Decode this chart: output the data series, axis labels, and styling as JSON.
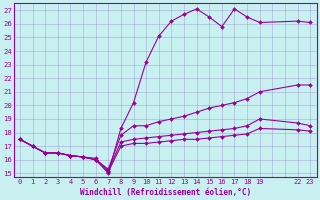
{
  "xlabel": "Windchill (Refroidissement éolien,°C)",
  "bg_color": "#c8f0f0",
  "line_color": "#990099",
  "grid_color": "#9999cc",
  "yticks": [
    15,
    16,
    17,
    18,
    19,
    20,
    21,
    22,
    23,
    24,
    25,
    26,
    27
  ],
  "xtick_labels": [
    "0",
    "1",
    "2",
    "3",
    "4",
    "5",
    "6",
    "7",
    "8",
    "9",
    "10",
    "11",
    "12",
    "13",
    "14",
    "15",
    "16",
    "17",
    "18",
    "19",
    "",
    "",
    "22",
    "23"
  ],
  "xtick_positions": [
    0,
    1,
    2,
    3,
    4,
    5,
    6,
    7,
    8,
    9,
    10,
    11,
    12,
    13,
    14,
    15,
    16,
    17,
    18,
    19,
    20,
    21,
    22,
    23
  ],
  "lines": [
    {
      "x": [
        0,
        1,
        2,
        3,
        4,
        5,
        6,
        7,
        8,
        9,
        10,
        11,
        12,
        13,
        14,
        15,
        16,
        17,
        18,
        19,
        22,
        23
      ],
      "y": [
        17.5,
        17.0,
        16.5,
        16.5,
        16.3,
        16.2,
        16.0,
        15.0,
        18.3,
        20.2,
        23.2,
        25.1,
        26.2,
        26.7,
        27.1,
        26.5,
        25.8,
        27.1,
        26.5,
        26.1,
        26.2,
        26.1
      ]
    },
    {
      "x": [
        0,
        1,
        2,
        3,
        4,
        5,
        6,
        7,
        8,
        9,
        10,
        11,
        12,
        13,
        14,
        15,
        16,
        17,
        18,
        19,
        22,
        23
      ],
      "y": [
        17.5,
        17.0,
        16.5,
        16.5,
        16.3,
        16.2,
        16.0,
        15.3,
        17.8,
        18.5,
        18.5,
        18.8,
        19.0,
        19.2,
        19.5,
        19.8,
        20.0,
        20.2,
        20.5,
        21.0,
        21.5,
        21.5
      ]
    },
    {
      "x": [
        0,
        1,
        2,
        3,
        4,
        5,
        6,
        7,
        8,
        9,
        10,
        11,
        12,
        13,
        14,
        15,
        16,
        17,
        18,
        19,
        22,
        23
      ],
      "y": [
        17.5,
        17.0,
        16.5,
        16.5,
        16.3,
        16.2,
        16.0,
        15.2,
        17.3,
        17.5,
        17.6,
        17.7,
        17.8,
        17.9,
        18.0,
        18.1,
        18.2,
        18.3,
        18.5,
        19.0,
        18.7,
        18.5
      ]
    },
    {
      "x": [
        0,
        1,
        2,
        3,
        4,
        5,
        6,
        7,
        8,
        9,
        10,
        11,
        12,
        13,
        14,
        15,
        16,
        17,
        18,
        19,
        22,
        23
      ],
      "y": [
        17.5,
        17.0,
        16.5,
        16.5,
        16.3,
        16.2,
        16.1,
        15.1,
        17.0,
        17.2,
        17.2,
        17.3,
        17.4,
        17.5,
        17.5,
        17.6,
        17.7,
        17.8,
        17.9,
        18.3,
        18.2,
        18.1
      ]
    }
  ]
}
